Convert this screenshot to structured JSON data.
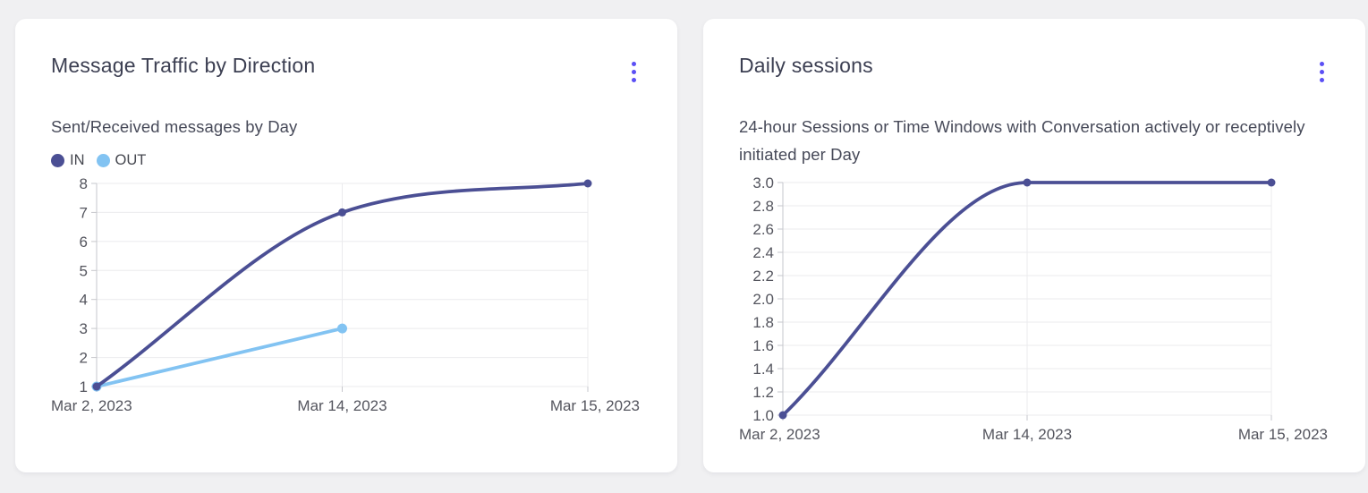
{
  "page": {
    "background": "#f0f0f2"
  },
  "colors": {
    "card_background": "#ffffff",
    "accent_menu": "#5b4ff5",
    "series_in": "#4b4f94",
    "series_out": "#82c3f2",
    "gridline": "#ebebee",
    "axis_line": "#c6c7cc",
    "tick_text": "#54555e",
    "title_text": "#3c3f52",
    "subtitle_text": "#474a59"
  },
  "cards": [
    {
      "title": "Message Traffic by Direction",
      "subtitle": "Sent/Received messages by Day",
      "menu_icon": "kebab-menu-icon"
    },
    {
      "title": "Daily sessions",
      "subtitle": "24-hour Sessions or Time Windows with Conversation actively or receptively initiated per Day",
      "menu_icon": "kebab-menu-icon"
    }
  ],
  "chart_data": [
    {
      "type": "line",
      "title": "Message Traffic by Direction",
      "subtitle": "Sent/Received messages by Day",
      "categories": [
        "Mar 2, 2023",
        "Mar 14, 2023",
        "Mar 15, 2023"
      ],
      "series": [
        {
          "name": "IN",
          "color": "#4b4f94",
          "values": [
            1,
            7,
            8
          ],
          "marker_radius": 4.5
        },
        {
          "name": "OUT",
          "color": "#82c3f2",
          "values": [
            1,
            3,
            null
          ],
          "marker_radius": 5.5
        }
      ],
      "yticks": [
        "1",
        "2",
        "3",
        "4",
        "5",
        "6",
        "7",
        "8"
      ],
      "ylim": [
        1,
        8
      ],
      "grid": true,
      "curve": "monotone",
      "legend_position": "top-left"
    },
    {
      "type": "line",
      "title": "Daily sessions",
      "subtitle": "24-hour Sessions or Time Windows with Conversation actively or receptively initiated per Day",
      "categories": [
        "Mar 2, 2023",
        "Mar 14, 2023",
        "Mar 15, 2023"
      ],
      "series": [
        {
          "name": "Daily sessions",
          "color": "#4b4f94",
          "values": [
            1.0,
            3.0,
            3.0
          ],
          "marker_radius": 4.5
        }
      ],
      "yticks": [
        "1.0",
        "1.2",
        "1.4",
        "1.6",
        "1.8",
        "2.0",
        "2.2",
        "2.4",
        "2.6",
        "2.8",
        "3.0"
      ],
      "ylim": [
        1.0,
        3.0
      ],
      "grid": true,
      "curve": "monotone",
      "legend_position": "none"
    }
  ]
}
